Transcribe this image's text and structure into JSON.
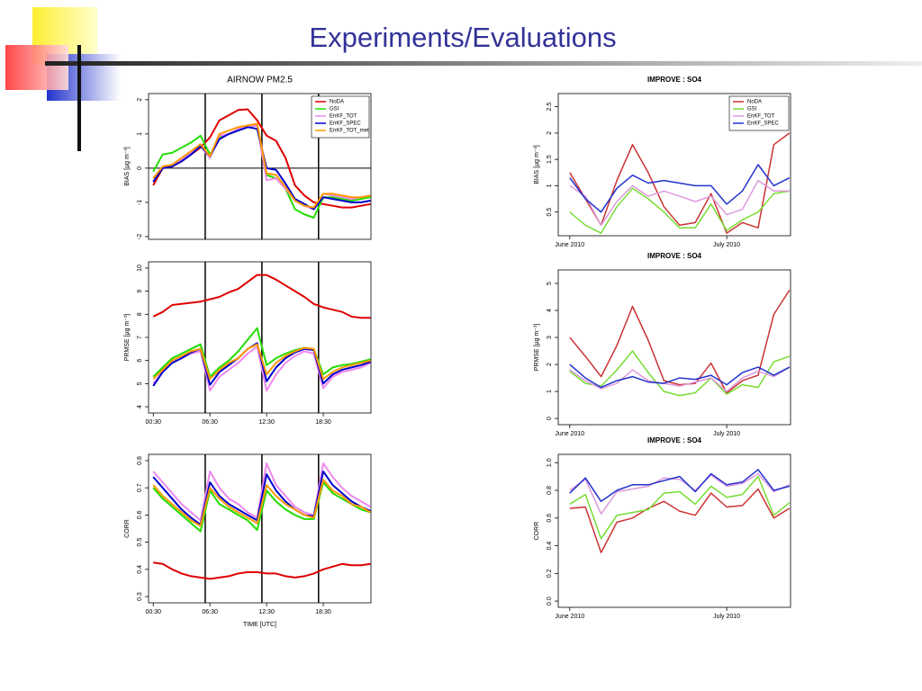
{
  "title": "Experiments/Evaluations",
  "chart_data": [
    {
      "type": "line",
      "title": "AIRNOW PM2.5",
      "ylabel": "BIAS [µg m⁻³]",
      "xlim": [
        0,
        23.55
      ],
      "ylim": [
        -2.08,
        2.18
      ],
      "yticks": [
        -2,
        -1,
        0,
        1,
        2
      ],
      "vlines": [
        6,
        12,
        18
      ],
      "hline": 0,
      "legend": "upper right",
      "x": [
        0.5,
        1.5,
        2.5,
        3.5,
        4.5,
        5.5,
        6.5,
        7.5,
        8.5,
        9.5,
        10.5,
        11.5,
        12.5,
        13.5,
        14.5,
        15.5,
        16.5,
        17.5,
        18.5,
        19.5,
        20.5,
        21.5,
        22.5,
        23.5
      ],
      "series": [
        {
          "name": "NoDA",
          "color": "#dd0000",
          "values": [
            -0.5,
            0.0,
            0.05,
            0.2,
            0.4,
            0.6,
            0.9,
            1.4,
            1.55,
            1.7,
            1.72,
            1.4,
            0.95,
            0.8,
            0.3,
            -0.5,
            -0.8,
            -1.0,
            -1.05,
            -1.1,
            -1.15,
            -1.15,
            -1.1,
            -1.05
          ]
        },
        {
          "name": "GSI",
          "color": "#22dd00",
          "values": [
            -0.1,
            0.4,
            0.45,
            0.6,
            0.75,
            0.95,
            0.4,
            0.9,
            1.0,
            1.1,
            1.2,
            1.25,
            -0.2,
            -0.3,
            -0.6,
            -1.2,
            -1.35,
            -1.45,
            -0.85,
            -0.85,
            -0.9,
            -0.95,
            -0.9,
            -0.85
          ]
        },
        {
          "name": "EnKF_TOT",
          "color": "#ee88ee",
          "values": [
            -0.3,
            0.05,
            0.1,
            0.25,
            0.45,
            0.65,
            0.3,
            0.95,
            1.0,
            1.15,
            1.2,
            1.25,
            -0.35,
            -0.3,
            -0.6,
            -0.95,
            -1.1,
            -1.2,
            -0.75,
            -0.8,
            -0.85,
            -0.9,
            -0.85,
            -0.8
          ]
        },
        {
          "name": "EnKF_SPEC",
          "color": "#0000cc",
          "values": [
            -0.4,
            0.0,
            0.05,
            0.2,
            0.4,
            0.65,
            0.35,
            0.85,
            1.0,
            1.1,
            1.2,
            1.15,
            0.0,
            -0.05,
            -0.45,
            -0.9,
            -1.05,
            -1.2,
            -0.85,
            -0.9,
            -0.95,
            -1.0,
            -1.0,
            -0.95
          ]
        },
        {
          "name": "EnKF_TOT_met",
          "color": "#ff9900",
          "values": [
            -0.3,
            0.05,
            0.1,
            0.3,
            0.5,
            0.7,
            0.35,
            1.0,
            1.1,
            1.2,
            1.25,
            1.3,
            -0.15,
            -0.2,
            -0.55,
            -0.95,
            -1.1,
            -1.15,
            -0.75,
            -0.75,
            -0.8,
            -0.85,
            -0.85,
            -0.8
          ]
        }
      ]
    },
    {
      "type": "line",
      "ylabel": "PRMSE [µg m⁻³]",
      "xlim": [
        0,
        23.55
      ],
      "ylim": [
        3.73,
        10.27
      ],
      "yticks": [
        4,
        5,
        6,
        7,
        8,
        9,
        10
      ],
      "xticks": [
        {
          "value": 0.5,
          "label": "00:30"
        },
        {
          "value": 6.5,
          "label": "06:30"
        },
        {
          "value": 12.5,
          "label": "12:30"
        },
        {
          "value": 18.5,
          "label": "18:30"
        }
      ],
      "vlines": [
        6,
        12,
        18
      ],
      "x": [
        0.5,
        1.5,
        2.5,
        3.5,
        4.5,
        5.5,
        6.5,
        7.5,
        8.5,
        9.5,
        10.5,
        11.5,
        12.5,
        13.5,
        14.5,
        15.5,
        16.5,
        17.5,
        18.5,
        19.5,
        20.5,
        21.5,
        22.5,
        23.5
      ],
      "series": [
        {
          "color": "#dd0000",
          "values": [
            7.9,
            8.1,
            8.4,
            8.45,
            8.5,
            8.55,
            8.65,
            8.75,
            8.95,
            9.1,
            9.4,
            9.7,
            9.7,
            9.5,
            9.25,
            9.0,
            8.75,
            8.45,
            8.3,
            8.2,
            8.1,
            7.9,
            7.85,
            7.85
          ]
        },
        {
          "color": "#22dd00",
          "values": [
            5.3,
            5.7,
            6.1,
            6.3,
            6.5,
            6.7,
            5.3,
            5.7,
            6.0,
            6.4,
            6.9,
            7.4,
            5.8,
            6.1,
            6.3,
            6.45,
            6.55,
            6.5,
            5.4,
            5.7,
            5.8,
            5.85,
            5.95,
            6.05
          ]
        },
        {
          "color": "#ee88ee",
          "values": [
            5.0,
            5.5,
            5.9,
            6.1,
            6.3,
            6.4,
            4.7,
            5.3,
            5.6,
            5.9,
            6.3,
            6.6,
            4.7,
            5.4,
            5.9,
            6.2,
            6.4,
            6.3,
            4.8,
            5.3,
            5.5,
            5.6,
            5.7,
            5.9
          ]
        },
        {
          "color": "#0000cc",
          "values": [
            4.9,
            5.5,
            5.9,
            6.1,
            6.35,
            6.5,
            4.95,
            5.5,
            5.8,
            6.1,
            6.5,
            6.75,
            5.1,
            5.7,
            6.1,
            6.35,
            6.5,
            6.45,
            5.0,
            5.4,
            5.6,
            5.7,
            5.8,
            5.95
          ]
        },
        {
          "color": "#ff9900",
          "values": [
            5.2,
            5.6,
            6.0,
            6.2,
            6.4,
            6.5,
            5.2,
            5.6,
            5.9,
            6.1,
            6.5,
            6.7,
            5.4,
            5.9,
            6.2,
            6.4,
            6.55,
            6.5,
            5.2,
            5.5,
            5.7,
            5.8,
            5.9,
            6.0
          ]
        }
      ]
    },
    {
      "type": "line",
      "ylabel": "CORR",
      "xlabel": "TIME [UTC]",
      "xlim": [
        0,
        23.55
      ],
      "ylim": [
        0.277,
        0.823
      ],
      "yticks": [
        0.3,
        0.4,
        0.5,
        0.6,
        0.7,
        0.8
      ],
      "xticks": [
        {
          "value": 0.5,
          "label": "00:30"
        },
        {
          "value": 6.5,
          "label": "06:30"
        },
        {
          "value": 12.5,
          "label": "12:30"
        },
        {
          "value": 18.5,
          "label": "18:30"
        }
      ],
      "vlines": [
        6,
        12,
        18
      ],
      "x": [
        0.5,
        1.5,
        2.5,
        3.5,
        4.5,
        5.5,
        6.5,
        7.5,
        8.5,
        9.5,
        10.5,
        11.5,
        12.5,
        13.5,
        14.5,
        15.5,
        16.5,
        17.5,
        18.5,
        19.5,
        20.5,
        21.5,
        22.5,
        23.5
      ],
      "series": [
        {
          "color": "#dd0000",
          "values": [
            0.425,
            0.42,
            0.4,
            0.385,
            0.375,
            0.37,
            0.365,
            0.37,
            0.375,
            0.385,
            0.39,
            0.39,
            0.385,
            0.385,
            0.375,
            0.37,
            0.375,
            0.385,
            0.4,
            0.41,
            0.42,
            0.415,
            0.415,
            0.42
          ]
        },
        {
          "color": "#22dd00",
          "values": [
            0.7,
            0.66,
            0.63,
            0.6,
            0.57,
            0.54,
            0.69,
            0.64,
            0.62,
            0.6,
            0.58,
            0.545,
            0.69,
            0.65,
            0.62,
            0.6,
            0.585,
            0.585,
            0.72,
            0.68,
            0.66,
            0.64,
            0.62,
            0.61
          ]
        },
        {
          "color": "#ee88ee",
          "values": [
            0.76,
            0.72,
            0.68,
            0.64,
            0.61,
            0.58,
            0.76,
            0.7,
            0.66,
            0.64,
            0.61,
            0.59,
            0.79,
            0.71,
            0.67,
            0.63,
            0.61,
            0.6,
            0.79,
            0.74,
            0.7,
            0.67,
            0.65,
            0.63
          ]
        },
        {
          "color": "#0000cc",
          "values": [
            0.74,
            0.7,
            0.66,
            0.62,
            0.59,
            0.565,
            0.72,
            0.67,
            0.64,
            0.62,
            0.6,
            0.58,
            0.75,
            0.69,
            0.65,
            0.62,
            0.6,
            0.595,
            0.76,
            0.71,
            0.68,
            0.65,
            0.63,
            0.615
          ]
        },
        {
          "color": "#ff9900",
          "values": [
            0.71,
            0.67,
            0.64,
            0.61,
            0.58,
            0.56,
            0.7,
            0.66,
            0.63,
            0.61,
            0.59,
            0.57,
            0.71,
            0.67,
            0.64,
            0.62,
            0.6,
            0.59,
            0.73,
            0.69,
            0.67,
            0.64,
            0.63,
            0.61
          ]
        }
      ]
    },
    {
      "type": "line",
      "title": "IMPROVE :  SO4",
      "ylabel": "BIAS [µg m⁻³]",
      "xlim": [
        -2.2,
        42.2
      ],
      "ylim": [
        0.05,
        2.75
      ],
      "yticks": [
        0.5,
        1.0,
        1.5,
        2.0,
        2.5
      ],
      "xticks": [
        {
          "value": 0,
          "label": "June 2010"
        },
        {
          "value": 30,
          "label": "July 2010"
        }
      ],
      "legend": "upper right",
      "x": [
        0,
        3,
        6,
        9,
        12,
        15,
        18,
        21,
        24,
        27,
        30,
        33,
        36,
        39,
        42
      ],
      "series": [
        {
          "name": "NoDA",
          "color": "#cc3333",
          "values": [
            1.25,
            0.75,
            0.25,
            1.1,
            1.78,
            1.25,
            0.6,
            0.25,
            0.3,
            0.85,
            0.1,
            0.3,
            0.2,
            1.78,
            2.0
          ]
        },
        {
          "name": "GSI",
          "color": "#77dd33",
          "values": [
            0.5,
            0.25,
            0.1,
            0.6,
            0.95,
            0.75,
            0.5,
            0.2,
            0.2,
            0.65,
            0.15,
            0.35,
            0.5,
            0.85,
            0.9
          ]
        },
        {
          "name": "EnKF_TOT",
          "color": "#dd99dd",
          "values": [
            1.0,
            0.8,
            0.25,
            0.7,
            1.0,
            0.8,
            0.9,
            0.8,
            0.7,
            0.8,
            0.45,
            0.55,
            1.1,
            0.9,
            0.9
          ]
        },
        {
          "name": "EnKF_SPEC",
          "color": "#2233cc",
          "values": [
            1.15,
            0.75,
            0.5,
            0.95,
            1.2,
            1.05,
            1.1,
            1.05,
            1.0,
            1.0,
            0.65,
            0.9,
            1.4,
            1.0,
            1.15
          ]
        }
      ]
    },
    {
      "type": "line",
      "title": "IMPROVE :  SO4",
      "ylabel": "PRMSE [µg m⁻³]",
      "xlim": [
        -2.2,
        42.2
      ],
      "ylim": [
        -0.23,
        5.5
      ],
      "yticks": [
        0,
        1,
        2,
        3,
        4,
        5
      ],
      "xticks": [
        {
          "value": 0,
          "label": "June 2010"
        },
        {
          "value": 30,
          "label": "July 2010"
        }
      ],
      "x": [
        0,
        3,
        6,
        9,
        12,
        15,
        18,
        21,
        24,
        27,
        30,
        33,
        36,
        39,
        42
      ],
      "series": [
        {
          "color": "#cc3333",
          "values": [
            3.0,
            2.3,
            1.55,
            2.7,
            4.15,
            2.9,
            1.4,
            1.25,
            1.3,
            2.05,
            0.95,
            1.4,
            1.6,
            3.85,
            4.75
          ]
        },
        {
          "color": "#77dd33",
          "values": [
            1.75,
            1.3,
            1.2,
            1.8,
            2.5,
            1.7,
            1.0,
            0.85,
            0.95,
            1.5,
            0.9,
            1.25,
            1.15,
            2.1,
            2.3
          ]
        },
        {
          "color": "#dd99dd",
          "values": [
            1.8,
            1.4,
            1.1,
            1.3,
            1.8,
            1.4,
            1.3,
            1.2,
            1.35,
            1.5,
            1.0,
            1.5,
            1.75,
            1.55,
            1.9
          ]
        },
        {
          "color": "#2233cc",
          "values": [
            2.0,
            1.5,
            1.15,
            1.4,
            1.55,
            1.35,
            1.3,
            1.5,
            1.45,
            1.6,
            1.25,
            1.7,
            1.9,
            1.6,
            1.9
          ]
        }
      ]
    },
    {
      "type": "line",
      "title": "IMPROVE :  SO4",
      "ylabel": "CORR",
      "xlim": [
        -2.2,
        42.2
      ],
      "ylim": [
        -0.045,
        1.06
      ],
      "yticks": [
        {
          "value": 0,
          "label": "0.0"
        },
        0.2,
        0.4,
        0.6,
        0.8,
        {
          "value": 1,
          "label": "1.0"
        }
      ],
      "xticks": [
        {
          "value": 0,
          "label": "June 2010"
        },
        {
          "value": 30,
          "label": "July 2010"
        }
      ],
      "x": [
        0,
        3,
        6,
        9,
        12,
        15,
        18,
        21,
        24,
        27,
        30,
        33,
        36,
        39,
        42
      ],
      "series": [
        {
          "color": "#cc3333",
          "values": [
            0.67,
            0.68,
            0.35,
            0.57,
            0.6,
            0.67,
            0.72,
            0.65,
            0.62,
            0.78,
            0.68,
            0.69,
            0.81,
            0.6,
            0.67
          ]
        },
        {
          "color": "#77dd33",
          "values": [
            0.7,
            0.77,
            0.45,
            0.62,
            0.64,
            0.66,
            0.78,
            0.79,
            0.7,
            0.83,
            0.75,
            0.77,
            0.9,
            0.62,
            0.71
          ]
        },
        {
          "color": "#dd99dd",
          "values": [
            0.8,
            0.88,
            0.63,
            0.79,
            0.81,
            0.83,
            0.89,
            0.88,
            0.8,
            0.91,
            0.83,
            0.85,
            0.92,
            0.79,
            0.84
          ]
        },
        {
          "color": "#2233cc",
          "values": [
            0.78,
            0.89,
            0.72,
            0.8,
            0.84,
            0.84,
            0.87,
            0.9,
            0.79,
            0.92,
            0.84,
            0.86,
            0.95,
            0.8,
            0.83
          ]
        }
      ]
    }
  ]
}
